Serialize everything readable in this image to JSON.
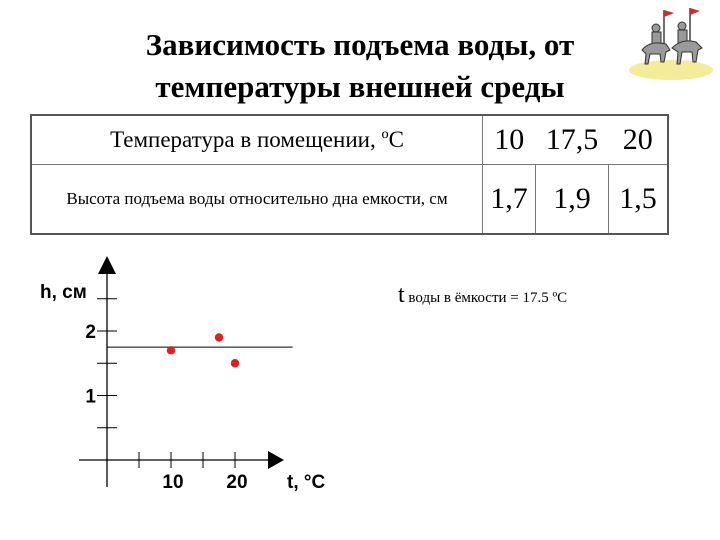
{
  "title": {
    "line1": "Зависимость подъема воды, от",
    "line2": "температуры внешней среды"
  },
  "table": {
    "row1_label": "Температура в помещении, ºС",
    "row1_values": [
      "10",
      "17,5",
      "20"
    ],
    "row2_label": "Высота подъема воды относительно дна емкости, см",
    "row2_values": [
      "1,7",
      "1,9",
      "1,5"
    ]
  },
  "note": {
    "t": "t",
    "text": " воды в ёмкости = 17.5 ºС"
  },
  "logo_icon": "knights-on-horseback-icon",
  "chart_data": {
    "type": "scatter",
    "title": "",
    "xlabel": "t, °C",
    "ylabel": "h, см",
    "x_tick_labels": [
      "10",
      "20"
    ],
    "x_ticks": [
      10,
      20
    ],
    "y_tick_labels": [
      "1",
      "2"
    ],
    "y_ticks": [
      1,
      2
    ],
    "xlim": [
      0,
      26
    ],
    "ylim": [
      0,
      3
    ],
    "points": [
      {
        "x": 10,
        "y": 1.7
      },
      {
        "x": 17.5,
        "y": 1.9
      },
      {
        "x": 20,
        "y": 1.5
      }
    ],
    "reference_line": {
      "x_start": 0,
      "x_end": 29,
      "y": 1.75
    },
    "marker_color": "#dd2222",
    "grid": false
  }
}
